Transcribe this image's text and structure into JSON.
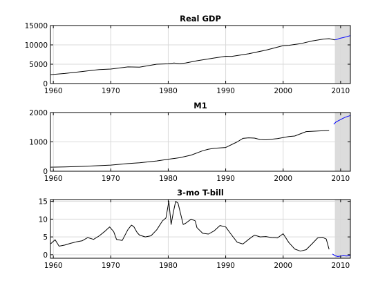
{
  "chart_data": [
    {
      "type": "line",
      "title": "Real GDP",
      "xlim": [
        1959.5,
        2011.7
      ],
      "ylim": [
        0,
        15000
      ],
      "xticks": [
        1960,
        1970,
        1980,
        1990,
        2000,
        2010
      ],
      "xtick_labels": [
        "1960",
        "1970",
        "1980",
        "1990",
        "2000",
        "2010"
      ],
      "yticks": [
        0,
        5000,
        10000,
        15000
      ],
      "ytick_labels": [
        "0",
        "5000",
        "10000",
        "15000"
      ],
      "grid": true,
      "shaded_region": [
        2009.0,
        2011.7
      ],
      "series": [
        {
          "color": "#000000",
          "x": [
            1959.5,
            1962,
            1965,
            1968,
            1970,
            1973,
            1975,
            1978,
            1980,
            1981,
            1982,
            1983,
            1985,
            1988,
            1990,
            1991,
            1994,
            1997,
            2000,
            2001,
            2003,
            2005,
            2007,
            2008,
            2009
          ],
          "y": [
            2300,
            2600,
            3100,
            3600,
            3750,
            4300,
            4250,
            5000,
            5100,
            5300,
            5150,
            5300,
            5900,
            6600,
            7050,
            7000,
            7700,
            8650,
            9800,
            9900,
            10300,
            11000,
            11500,
            11600,
            11300
          ]
        },
        {
          "color": "#0000ff",
          "x": [
            2009,
            2009.5,
            2010,
            2010.5,
            2011,
            2011.7
          ],
          "y": [
            11300,
            11500,
            11750,
            11900,
            12100,
            12400
          ]
        }
      ]
    },
    {
      "type": "line",
      "title": "M1",
      "xlim": [
        1959.5,
        2011.7
      ],
      "ylim": [
        0,
        2000
      ],
      "xticks": [
        1960,
        1970,
        1980,
        1990,
        2000,
        2010
      ],
      "xtick_labels": [
        "1960",
        "1970",
        "1980",
        "1990",
        "2000",
        "2010"
      ],
      "yticks": [
        0,
        1000,
        2000
      ],
      "ytick_labels": [
        "0",
        "1000",
        "2000"
      ],
      "grid": true,
      "shaded_region": [
        2009.0,
        2011.7
      ],
      "series": [
        {
          "color": "#000000",
          "x": [
            1959.5,
            1962,
            1965,
            1968,
            1970,
            1973,
            1975,
            1978,
            1980,
            1982,
            1984,
            1986,
            1987,
            1988,
            1990,
            1992,
            1993,
            1994,
            1995,
            1996,
            1997,
            1999,
            2001,
            2002,
            2004,
            2006,
            2008
          ],
          "y": [
            140,
            145,
            165,
            190,
            210,
            260,
            290,
            350,
            410,
            460,
            550,
            700,
            750,
            780,
            810,
            1000,
            1120,
            1140,
            1130,
            1080,
            1070,
            1110,
            1180,
            1200,
            1350,
            1370,
            1390
          ],
          "y_note_none": null
        },
        {
          "color": "#0000ff",
          "x": [
            2008.8,
            2009.2,
            2009.6,
            2010.2,
            2010.8,
            2011.7
          ],
          "y": [
            1600,
            1680,
            1720,
            1780,
            1840,
            1900
          ]
        }
      ]
    },
    {
      "type": "line",
      "title": "3-mo T-bill",
      "xlim": [
        1959.5,
        2011.7
      ],
      "ylim": [
        -1,
        15.5
      ],
      "xticks": [
        1960,
        1970,
        1980,
        1990,
        2000,
        2010
      ],
      "xtick_labels": [
        "1960",
        "1970",
        "1980",
        "1990",
        "2000",
        "2010"
      ],
      "yticks": [
        0,
        5,
        10,
        15
      ],
      "ytick_labels": [
        "0",
        "5",
        "10",
        "15"
      ],
      "grid": true,
      "shaded_region": [
        2009.0,
        2011.7
      ],
      "series": [
        {
          "color": "#000000",
          "x": [
            1959.5,
            1960.3,
            1961,
            1962,
            1963,
            1964,
            1965,
            1966,
            1967,
            1968,
            1969,
            1969.8,
            1970.5,
            1971,
            1972,
            1973,
            1973.6,
            1974,
            1974.6,
            1975,
            1976,
            1977,
            1978,
            1979,
            1979.6,
            1980.1,
            1980.5,
            1980.9,
            1981.3,
            1981.7,
            1982,
            1982.6,
            1983,
            1984,
            1984.7,
            1985,
            1986,
            1987,
            1988,
            1989,
            1990,
            1991,
            1992,
            1993,
            1994,
            1995,
            1996,
            1997,
            1998,
            1999,
            2000,
            2001,
            2002,
            2003,
            2004,
            2005,
            2006,
            2006.8,
            2007.5,
            2008
          ],
          "y": [
            3.0,
            4.2,
            2.4,
            2.7,
            3.2,
            3.6,
            3.9,
            4.8,
            4.3,
            5.3,
            6.6,
            7.8,
            6.5,
            4.3,
            4.0,
            7.1,
            8.3,
            7.9,
            6.2,
            5.5,
            5.0,
            5.3,
            7.0,
            9.5,
            10.3,
            15.0,
            8.5,
            12.0,
            15.0,
            14.5,
            12.5,
            8.5,
            8.8,
            10.0,
            9.5,
            7.6,
            6.0,
            5.8,
            6.7,
            8.2,
            7.8,
            5.6,
            3.5,
            3.0,
            4.3,
            5.5,
            5.0,
            5.1,
            4.8,
            4.7,
            5.9,
            3.4,
            1.6,
            1.0,
            1.4,
            3.0,
            4.7,
            4.9,
            4.4,
            1.5
          ]
        },
        {
          "color": "#0000ff",
          "x": [
            2008.6,
            2009,
            2009.5,
            2010,
            2010.5,
            2011,
            2011.7
          ],
          "y": [
            0.2,
            -0.3,
            -0.5,
            -0.4,
            -0.3,
            -0.35,
            -0.3
          ]
        }
      ]
    }
  ]
}
